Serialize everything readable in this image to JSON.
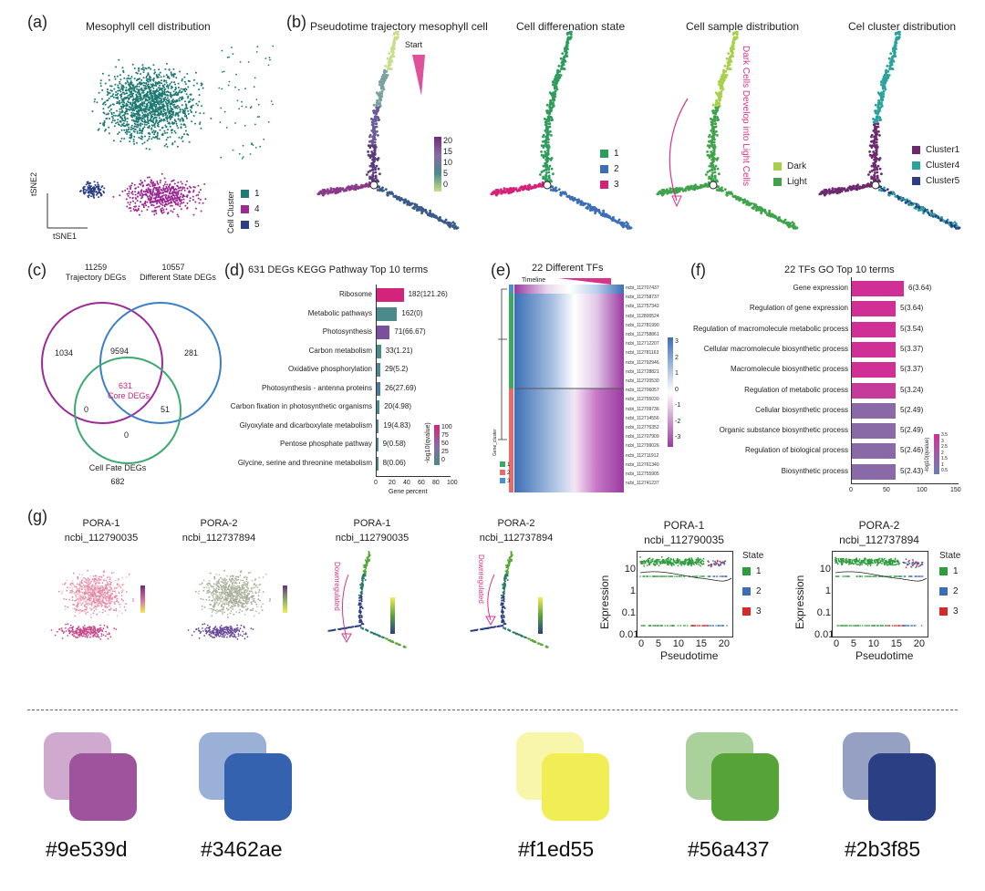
{
  "panels": {
    "a": {
      "label": "(a)",
      "title": "Mesophyll cell distribution",
      "xlabel": "tSNE1",
      "ylabel": "tSNE2",
      "legend_title": "Cell Cluster",
      "legend": [
        {
          "name": "1",
          "color": "#1e7a73"
        },
        {
          "name": "4",
          "color": "#9c2a92"
        },
        {
          "name": "5",
          "color": "#2b3f85"
        }
      ]
    },
    "b": {
      "label": "(b)",
      "titles": [
        "Pseudotime trajectory mesophyll cell",
        "Cell differenation state",
        "Cell sample distribution",
        "Cel cluster distribution"
      ],
      "start_label": "Start",
      "pseudotime_ticks": [
        "20",
        "15",
        "10",
        "5",
        "0"
      ],
      "state_legend": [
        {
          "name": "1",
          "color": "#2e9c5c"
        },
        {
          "name": "2",
          "color": "#3b6fb5"
        },
        {
          "name": "3",
          "color": "#d4237a"
        }
      ],
      "sample_legend": [
        {
          "name": "Dark",
          "color": "#a9d04a"
        },
        {
          "name": "Light",
          "color": "#3ea34a"
        }
      ],
      "sample_annotation": "Dark Cells Develop into Light Cells",
      "cluster_legend": [
        {
          "name": "Cluster1",
          "color": "#6b2a6e"
        },
        {
          "name": "Cluster4",
          "color": "#2aa39e"
        },
        {
          "name": "Cluster5",
          "color": "#2b3f85"
        }
      ]
    },
    "c": {
      "label": "(c)",
      "sets": [
        {
          "count": "11259",
          "name": "Trajectory DEGs"
        },
        {
          "count": "10557",
          "name": "Different State DEGs"
        },
        {
          "count": "682",
          "name": "Cell Fate DEGs"
        }
      ],
      "regions": {
        "only_a": "1034",
        "ab": "9594",
        "only_b": "281",
        "core": "631",
        "core_label": "Core DEGs",
        "ac": "0",
        "bc": "51",
        "only_c": "0"
      }
    },
    "d": {
      "label": "(d)",
      "title": "631 DEGs KEGG Pathway Top 10 terms",
      "xlabel": "Gene percent",
      "xticks": [
        "0",
        "20",
        "40",
        "60",
        "80",
        "100"
      ],
      "legend_title": "-log10(qvalue)",
      "legend_ticks": [
        "100",
        "75",
        "50",
        "25",
        "0"
      ]
    },
    "e": {
      "label": "(e)",
      "title": "22 Different TFs",
      "timeline_label": "Timeline",
      "group_title": "Gene_cluster",
      "groups": [
        "1",
        "2",
        "3"
      ],
      "scale_ticks": [
        "3",
        "2",
        "1",
        "0",
        "-1",
        "-2",
        "-3"
      ],
      "genes": [
        "ncbi_112707437",
        "ncbi_112758737",
        "ncbi_112757342",
        "ncbi_112800524",
        "ncbi_112781990",
        "ncbi_112758861",
        "ncbi_112712207",
        "ncbi_112781163",
        "ncbi_112792946",
        "ncbi_112728821",
        "ncbi_112720530",
        "ncbi_112706057",
        "ncbi_112755030",
        "ncbi_112709736",
        "ncbi_112714556",
        "ncbi_112776352",
        "ncbi_112707909",
        "ncbi_112799026",
        "ncbi_112711912",
        "ncbi_112761340",
        "ncbi_112755905",
        "ncbi_112741237"
      ]
    },
    "f": {
      "label": "(f)",
      "title": "22 TFs GO Top 10 terms",
      "xticks": [
        "0",
        "50",
        "100",
        "150"
      ],
      "legend_title": "-log10(qvalue)",
      "legend_ticks": [
        "3.5",
        "3",
        "2.5",
        "2",
        "1.5",
        "1",
        "0.5"
      ]
    },
    "g": {
      "label": "(g)",
      "tsne_titles": [
        {
          "gene": "PORA-1",
          "id": "ncbi_112790035"
        },
        {
          "gene": "PORA-2",
          "id": "ncbi_112737894"
        }
      ],
      "traj_titles": [
        {
          "gene": "PORA-1",
          "id": "ncbi_112790035"
        },
        {
          "gene": "PORA-2",
          "id": "ncbi_112737894"
        }
      ],
      "downregulated": "Downregulated",
      "expr_plots": [
        {
          "gene": "PORA-1",
          "id": "ncbi_112790035"
        },
        {
          "gene": "PORA-2",
          "id": "ncbi_112737894"
        }
      ],
      "expr_ylabel": "Expression",
      "expr_xlabel": "Pseudotime",
      "expr_yticks": [
        "10",
        "1",
        "0.1",
        "0.01"
      ],
      "expr_xticks": [
        "0",
        "5",
        "10",
        "15",
        "20"
      ],
      "state_title": "State",
      "states": [
        {
          "name": "1",
          "color": "#2e9c3c"
        },
        {
          "name": "2",
          "color": "#3b6fb5"
        },
        {
          "name": "3",
          "color": "#d42a2a"
        }
      ]
    }
  },
  "chart_data": [
    {
      "type": "bar",
      "title": "631 DEGs KEGG Pathway Top 10 terms",
      "xlabel": "Gene percent",
      "xlim": [
        0,
        100
      ],
      "categories": [
        "Ribosome",
        "Metabolic pathways",
        "Photosynthesis",
        "Carbon metabolism",
        "Oxidative phosphorylation",
        "Photosynthesis - antenna proteins",
        "Carbon fixation in photosynthetic organisms",
        "Glyoxylate and dicarboxylate metabolism",
        "Pentose phosphate pathway",
        "Glycine, serine and threonine metabolism"
      ],
      "values": [
        37,
        28,
        18,
        6,
        5,
        5,
        4,
        3,
        2,
        2
      ],
      "labels": [
        "182(121.26)",
        "162(0)",
        "71(66.67)",
        "33(1.21)",
        "29(5.2)",
        "26(27.69)",
        "20(4.98)",
        "19(4.83)",
        "9(0.58)",
        "8(0.06)"
      ],
      "colors": [
        "#d4237a",
        "#4a8a8a",
        "#7a4f9e",
        "#4a8a8a",
        "#4a8a8a",
        "#4a7a9a",
        "#4a8a8a",
        "#4a8a8a",
        "#4a8a8a",
        "#4a8a8a"
      ]
    },
    {
      "type": "bar",
      "title": "22 TFs GO Top 10 terms",
      "xlim": [
        0,
        150
      ],
      "categories": [
        "Gene expression",
        "Regulation of gene expression",
        "Regulation of macromolecule metabolic process",
        "Cellular macromolecule biosynthetic process",
        "Macromolecule biosynthetic process",
        "Regulation of metabolic process",
        "Cellular biosynthetic process",
        "Organic substance biosynthetic process",
        "Regulation of biological process",
        "Biosynthetic process"
      ],
      "values": [
        95,
        80,
        80,
        80,
        80,
        80,
        80,
        80,
        80,
        80
      ],
      "labels": [
        "6(3.64)",
        "5(3.64)",
        "5(3.54)",
        "5(3.37)",
        "5(3.37)",
        "5(3.24)",
        "5(2.49)",
        "5(2.49)",
        "5(2.46)",
        "5(2.43)"
      ],
      "colors": [
        "#d02f96",
        "#d02f96",
        "#d02f96",
        "#d02f96",
        "#d02f96",
        "#c43b9a",
        "#8a6aa6",
        "#8a6aa6",
        "#8a6aa6",
        "#8a6aa6"
      ]
    }
  ],
  "palette": [
    {
      "hex": "#9e539d",
      "light": "#cfa9ce"
    },
    {
      "hex": "#3462ae",
      "light": "#9ab0d6"
    },
    {
      "hex": "#f1ed55",
      "light": "#f8f6aa"
    },
    {
      "hex": "#56a437",
      "light": "#aad19b"
    },
    {
      "hex": "#2b3f85",
      "light": "#95a0c2"
    }
  ]
}
